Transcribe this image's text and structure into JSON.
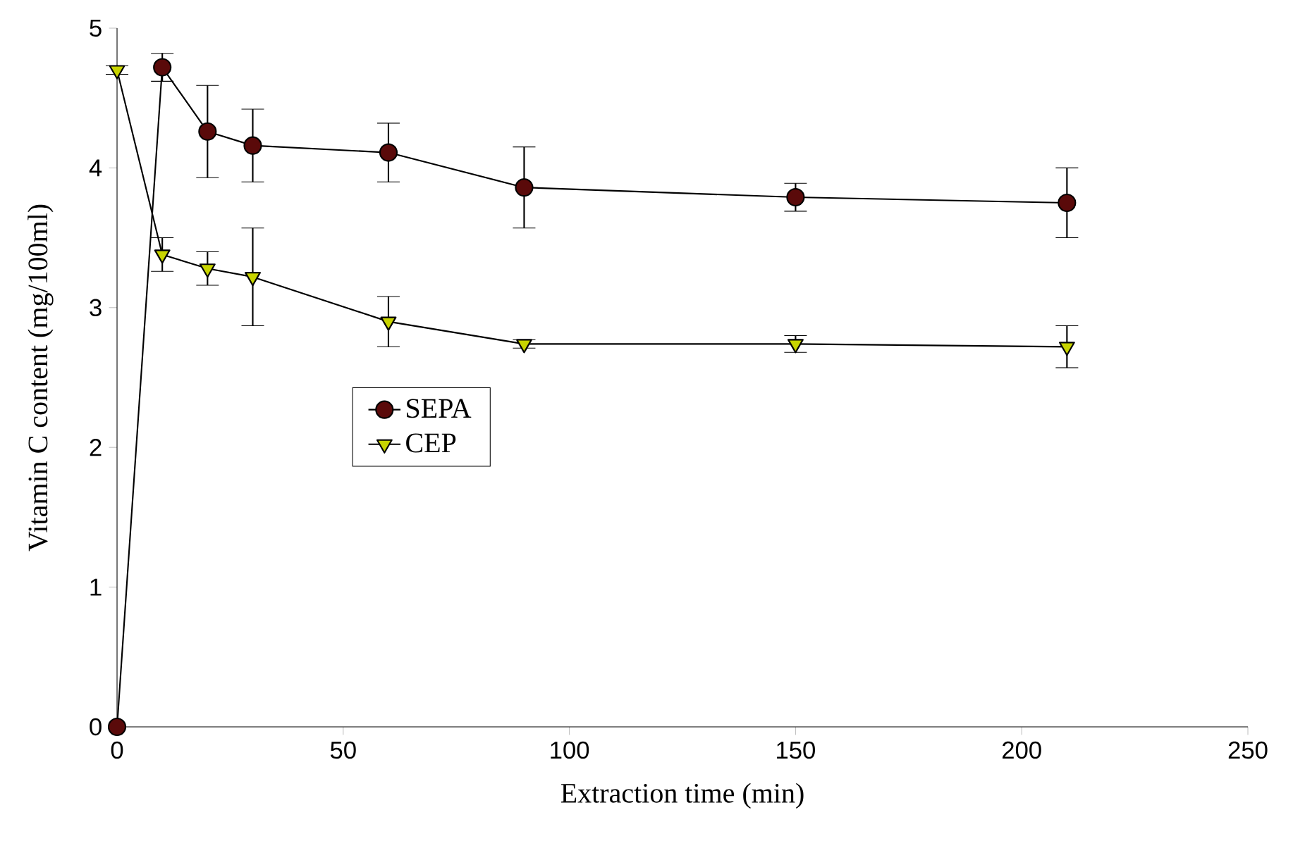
{
  "chart_data": {
    "type": "line",
    "xlabel": "Extraction time (min)",
    "ylabel": "Vitamin C content (mg/100ml)",
    "x": [
      0,
      10,
      20,
      30,
      60,
      90,
      150,
      210
    ],
    "series": [
      {
        "name": "SEPA",
        "color": "#5a0a0a",
        "marker": "circle",
        "values": [
          0,
          4.72,
          4.26,
          4.16,
          4.11,
          3.86,
          3.79,
          3.75
        ],
        "errors": [
          null,
          0.1,
          0.33,
          0.26,
          0.21,
          0.29,
          0.1,
          0.25
        ]
      },
      {
        "name": "CEP",
        "color": "#c8d400",
        "marker": "triangle",
        "values": [
          4.7,
          3.38,
          3.28,
          3.22,
          2.9,
          2.74,
          2.74,
          2.72
        ],
        "errors": [
          0.03,
          0.12,
          0.12,
          0.35,
          0.18,
          0.03,
          0.06,
          0.15
        ]
      }
    ],
    "xlim": [
      0,
      250
    ],
    "ylim": [
      0,
      5
    ],
    "xticks": [
      0,
      50,
      100,
      150,
      200,
      250
    ],
    "yticks": [
      0,
      1,
      2,
      3,
      4,
      5
    ],
    "legend": "center left",
    "grid": false,
    "line_style": "solid"
  }
}
